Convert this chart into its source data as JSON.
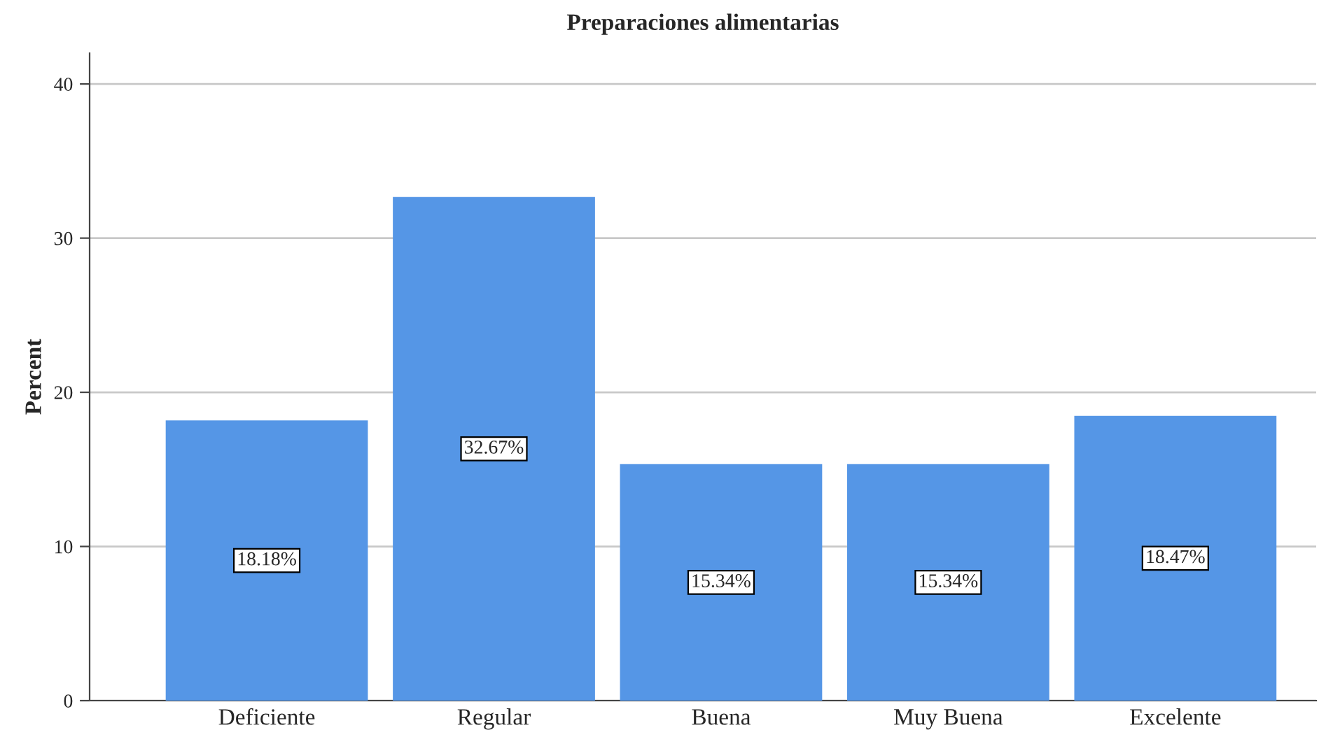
{
  "chart_data": {
    "type": "bar",
    "title": "Preparaciones alimentarias",
    "ylabel": "Percent",
    "categories": [
      "Deficiente",
      "Regular",
      "Buena",
      "Muy Buena",
      "Excelente"
    ],
    "values": [
      18.18,
      32.67,
      15.34,
      15.34,
      18.47
    ],
    "value_labels": [
      "18.18%",
      "32.67%",
      "15.34%",
      "15.34%",
      "18.47%"
    ],
    "color": "#5596e6",
    "ylim": [
      0,
      42
    ],
    "yticks": [
      0,
      10,
      20,
      30,
      40
    ],
    "grid": "y"
  }
}
